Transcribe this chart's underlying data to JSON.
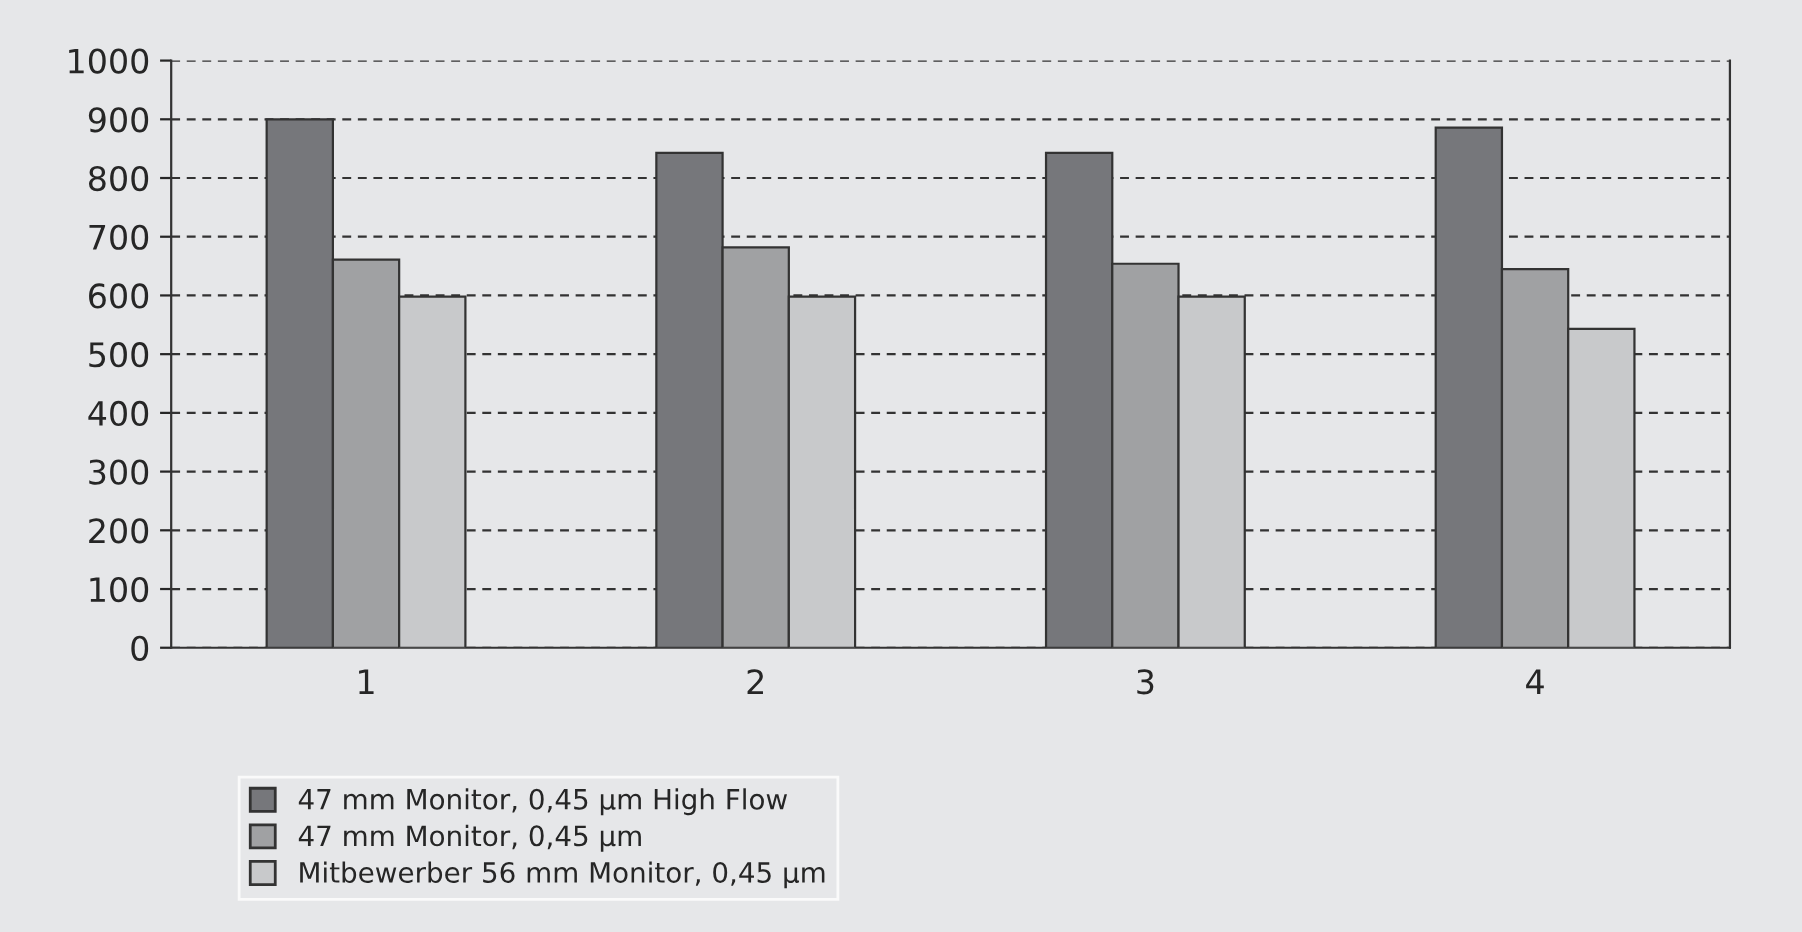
{
  "chart_data": {
    "type": "bar",
    "categories": [
      "1",
      "2",
      "3",
      "4"
    ],
    "series": [
      {
        "name": "47 mm Monitor, 0,45 µm High Flow",
        "color": "#76777b",
        "values": [
          900,
          843,
          843,
          886
        ]
      },
      {
        "name": "47 mm Monitor, 0,45 µm",
        "color": "#a0a1a3",
        "values": [
          661,
          682,
          654,
          645
        ]
      },
      {
        "name": "Mitbewerber 56 mm Monitor, 0,45 µm",
        "color": "#c8c9cb",
        "values": [
          598,
          598,
          598,
          543
        ]
      }
    ],
    "ylim": [
      0,
      1000
    ],
    "yticks": [
      0,
      100,
      200,
      300,
      400,
      500,
      600,
      700,
      800,
      900,
      1000
    ],
    "grid": "y",
    "legend": "bottom left"
  }
}
